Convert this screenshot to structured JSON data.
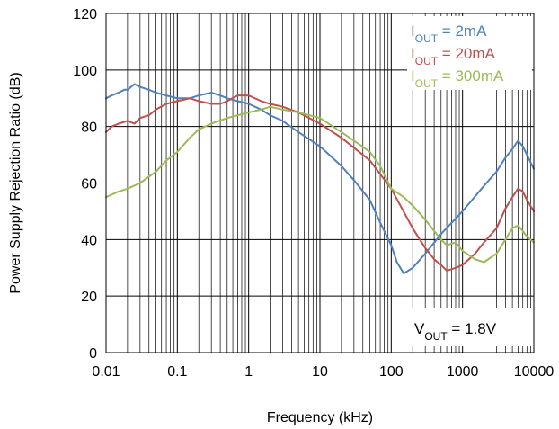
{
  "chart_data": {
    "type": "line",
    "xlabel": "Frequency (kHz)",
    "ylabel": "Power Supply Rejection Ratio (dB)",
    "xscale": "log",
    "xlim": [
      0.01,
      10000
    ],
    "ylim": [
      0,
      120
    ],
    "x_ticks": [
      0.01,
      0.1,
      1,
      10,
      100,
      1000,
      10000
    ],
    "x_tick_labels": [
      "0.01",
      "0.1",
      "1",
      "10",
      "100",
      "1000",
      "10000"
    ],
    "y_ticks": [
      0,
      20,
      40,
      60,
      80,
      100,
      120
    ],
    "y_tick_labels": [
      "0",
      "20",
      "40",
      "60",
      "80",
      "100",
      "120"
    ],
    "grid": true,
    "legend_position": "top-right",
    "series": [
      {
        "name_main": "I",
        "name_sub": "OUT",
        "name_rest": " = 2mA",
        "color": "#4f81bd",
        "points": [
          [
            0.01,
            90
          ],
          [
            0.012,
            91
          ],
          [
            0.015,
            92
          ],
          [
            0.018,
            93
          ],
          [
            0.02,
            93
          ],
          [
            0.025,
            95
          ],
          [
            0.03,
            94
          ],
          [
            0.04,
            93
          ],
          [
            0.05,
            92
          ],
          [
            0.07,
            91
          ],
          [
            0.1,
            90
          ],
          [
            0.15,
            90
          ],
          [
            0.2,
            91
          ],
          [
            0.3,
            92
          ],
          [
            0.4,
            91
          ],
          [
            0.5,
            90
          ],
          [
            0.7,
            89
          ],
          [
            1,
            88
          ],
          [
            1.5,
            86
          ],
          [
            2,
            84
          ],
          [
            3,
            82
          ],
          [
            5,
            78
          ],
          [
            10,
            73
          ],
          [
            20,
            66
          ],
          [
            30,
            61
          ],
          [
            50,
            54
          ],
          [
            70,
            46
          ],
          [
            100,
            38
          ],
          [
            120,
            32
          ],
          [
            150,
            28
          ],
          [
            200,
            30
          ],
          [
            300,
            35
          ],
          [
            500,
            42
          ],
          [
            1000,
            50
          ],
          [
            2000,
            59
          ],
          [
            3000,
            64
          ],
          [
            4000,
            69
          ],
          [
            5000,
            72
          ],
          [
            6000,
            75
          ],
          [
            7000,
            73
          ],
          [
            8000,
            70
          ],
          [
            10000,
            65
          ]
        ]
      },
      {
        "name_main": "I",
        "name_sub": "OUT",
        "name_rest": " = 20mA",
        "color": "#c0504d",
        "points": [
          [
            0.01,
            78
          ],
          [
            0.012,
            80
          ],
          [
            0.015,
            81
          ],
          [
            0.02,
            82
          ],
          [
            0.025,
            81
          ],
          [
            0.03,
            83
          ],
          [
            0.04,
            84
          ],
          [
            0.05,
            86
          ],
          [
            0.07,
            88
          ],
          [
            0.1,
            89
          ],
          [
            0.15,
            90
          ],
          [
            0.2,
            89
          ],
          [
            0.3,
            88
          ],
          [
            0.4,
            88
          ],
          [
            0.5,
            89
          ],
          [
            0.7,
            91
          ],
          [
            1,
            91
          ],
          [
            1.5,
            89
          ],
          [
            2,
            88
          ],
          [
            3,
            87
          ],
          [
            5,
            85
          ],
          [
            10,
            81
          ],
          [
            20,
            76
          ],
          [
            50,
            68
          ],
          [
            100,
            58
          ],
          [
            200,
            44
          ],
          [
            300,
            37
          ],
          [
            400,
            33
          ],
          [
            500,
            31
          ],
          [
            600,
            29
          ],
          [
            800,
            30
          ],
          [
            1000,
            31
          ],
          [
            1500,
            35
          ],
          [
            2000,
            39
          ],
          [
            3000,
            44
          ],
          [
            4000,
            51
          ],
          [
            5000,
            55
          ],
          [
            6000,
            58
          ],
          [
            7000,
            57
          ],
          [
            8000,
            54
          ],
          [
            10000,
            50
          ]
        ]
      },
      {
        "name_main": "I",
        "name_sub": "OUT",
        "name_rest": " = 300mA",
        "color": "#9bbb59",
        "points": [
          [
            0.01,
            55
          ],
          [
            0.015,
            57
          ],
          [
            0.02,
            58
          ],
          [
            0.03,
            60
          ],
          [
            0.05,
            64
          ],
          [
            0.07,
            68
          ],
          [
            0.1,
            71
          ],
          [
            0.15,
            76
          ],
          [
            0.2,
            79
          ],
          [
            0.3,
            81
          ],
          [
            0.5,
            83
          ],
          [
            0.7,
            84
          ],
          [
            1,
            85
          ],
          [
            1.5,
            86
          ],
          [
            2,
            87
          ],
          [
            3,
            86
          ],
          [
            5,
            85
          ],
          [
            10,
            83
          ],
          [
            20,
            78
          ],
          [
            30,
            75
          ],
          [
            50,
            71
          ],
          [
            70,
            66
          ],
          [
            100,
            58
          ],
          [
            150,
            55
          ],
          [
            200,
            52
          ],
          [
            300,
            47
          ],
          [
            400,
            43
          ],
          [
            500,
            40
          ],
          [
            600,
            38
          ],
          [
            800,
            39
          ],
          [
            1000,
            36
          ],
          [
            1500,
            33
          ],
          [
            2000,
            32
          ],
          [
            3000,
            35
          ],
          [
            4000,
            40
          ],
          [
            5000,
            44
          ],
          [
            6000,
            45
          ],
          [
            7000,
            43
          ],
          [
            8000,
            41
          ],
          [
            10000,
            39
          ]
        ]
      }
    ],
    "annotation": {
      "main": "V",
      "sub": "OUT",
      "rest": " = 1.8V"
    }
  }
}
